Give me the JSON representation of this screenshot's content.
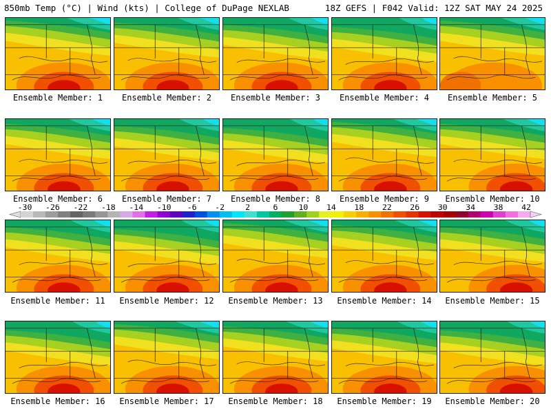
{
  "header": {
    "left": "850mb Temp (°C) | Wind (kts) | College of DuPage NEXLAB",
    "right": "18Z GEFS | F042 Valid: 12Z SAT MAY 24 2025"
  },
  "members": [
    {
      "label": "Ensemble Member: 1",
      "hot_spot": "south-center"
    },
    {
      "label": "Ensemble Member: 2",
      "hot_spot": "south-center"
    },
    {
      "label": "Ensemble Member: 3",
      "hot_spot": "south-center"
    },
    {
      "label": "Ensemble Member: 4",
      "hot_spot": "south-center"
    },
    {
      "label": "Ensemble Member: 5",
      "hot_spot": "none"
    },
    {
      "label": "Ensemble Member: 6",
      "hot_spot": "south-center"
    },
    {
      "label": "Ensemble Member: 7",
      "hot_spot": "south-center"
    },
    {
      "label": "Ensemble Member: 8",
      "hot_spot": "south-center"
    },
    {
      "label": "Ensemble Member: 9",
      "hot_spot": "south-center"
    },
    {
      "label": "Ensemble Member: 10",
      "hot_spot": "south-east"
    },
    {
      "label": "Ensemble Member: 11",
      "hot_spot": "south-center"
    },
    {
      "label": "Ensemble Member: 12",
      "hot_spot": "south-center"
    },
    {
      "label": "Ensemble Member: 13",
      "hot_spot": "south-center"
    },
    {
      "label": "Ensemble Member: 14",
      "hot_spot": "south-center"
    },
    {
      "label": "Ensemble Member: 15",
      "hot_spot": "south-east"
    },
    {
      "label": "Ensemble Member: 16",
      "hot_spot": "south-center"
    },
    {
      "label": "Ensemble Member: 17",
      "hot_spot": "south-center"
    },
    {
      "label": "Ensemble Member: 18",
      "hot_spot": "south-center"
    },
    {
      "label": "Ensemble Member: 19",
      "hot_spot": "south-center"
    },
    {
      "label": "Ensemble Member: 20",
      "hot_spot": "south-east"
    }
  ],
  "colorbar": {
    "units": "°C",
    "tick_labels": [
      "-30",
      "-26",
      "-22",
      "-18",
      "-14",
      "-10",
      "-6",
      "-2",
      "2",
      "6",
      "10",
      "14",
      "18",
      "22",
      "26",
      "30",
      "34",
      "38",
      "42"
    ],
    "colors": [
      "#d4d4d4",
      "#b8b8b8",
      "#9c9c9c",
      "#808080",
      "#646464",
      "#7a7a7a",
      "#969696",
      "#b4b4b4",
      "#d8a8e8",
      "#e070e8",
      "#c020e0",
      "#9000d0",
      "#6000c0",
      "#2020d0",
      "#0050e0",
      "#0090f0",
      "#00c0f0",
      "#00e8f8",
      "#40e0d0",
      "#00c8a0",
      "#00b060",
      "#20a030",
      "#60b020",
      "#a0d020",
      "#e8f020",
      "#f0f000",
      "#f8d000",
      "#f8b000",
      "#f89000",
      "#f07000",
      "#f05000",
      "#e83000",
      "#d81000",
      "#c00000",
      "#a80000",
      "#900028",
      "#b00070",
      "#d000b0",
      "#e040d0",
      "#f070e0",
      "#f8a8f0"
    ]
  }
}
